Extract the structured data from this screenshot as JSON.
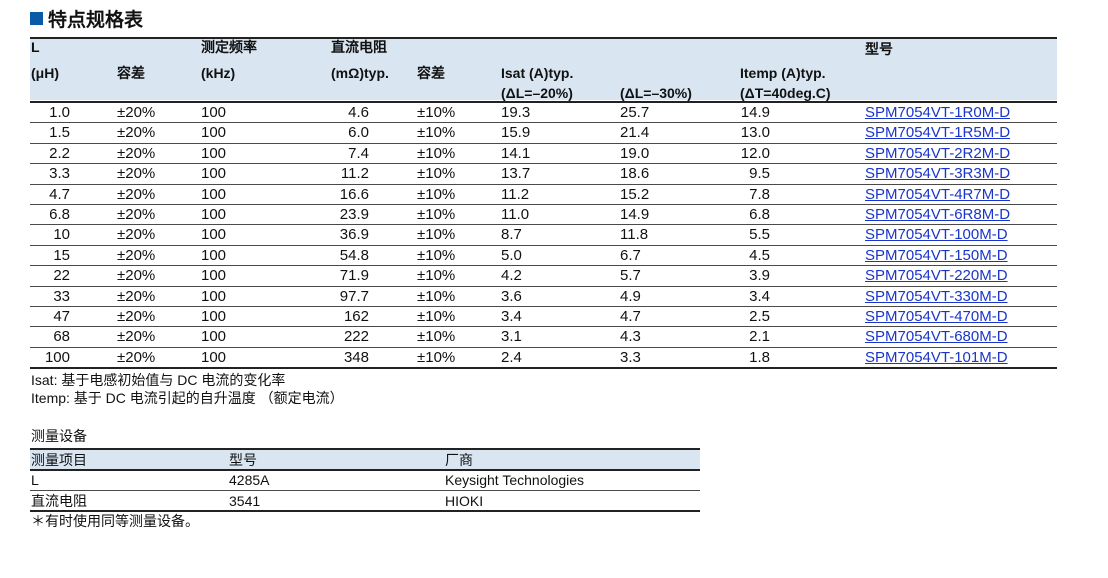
{
  "title": "特点规格表",
  "spec": {
    "headers": {
      "l": "L",
      "uh": "(μH)",
      "tol": "容差",
      "freq1": "测定频率",
      "freq2": "(kHz)",
      "dcr1": "直流电阻",
      "dcr2": "(mΩ)typ.",
      "dcr_tol": "容差",
      "isat": "Isat (A)typ.",
      "isat_a": "(ΔL=–20%)",
      "isat_b": "(ΔL=–30%)",
      "itemp": "Itemp (A)typ.",
      "itemp_sub": "(ΔT=40deg.C)",
      "part": "型号"
    },
    "rows": [
      {
        "l": "1.0",
        "tol": "±20%",
        "freq": "100",
        "dcr": "4.6",
        "dcr_tol": "±10%",
        "isat20": "19.3",
        "isat30": "25.7",
        "itemp": "14.9",
        "part": "SPM7054VT-1R0M-D"
      },
      {
        "l": "1.5",
        "tol": "±20%",
        "freq": "100",
        "dcr": "6.0",
        "dcr_tol": "±10%",
        "isat20": "15.9",
        "isat30": "21.4",
        "itemp": "13.0",
        "part": "SPM7054VT-1R5M-D"
      },
      {
        "l": "2.2",
        "tol": "±20%",
        "freq": "100",
        "dcr": "7.4",
        "dcr_tol": "±10%",
        "isat20": "14.1",
        "isat30": "19.0",
        "itemp": "12.0",
        "part": "SPM7054VT-2R2M-D"
      },
      {
        "l": "3.3",
        "tol": "±20%",
        "freq": "100",
        "dcr": "11.2",
        "dcr_tol": "±10%",
        "isat20": "13.7",
        "isat30": "18.6",
        "itemp": "9.5",
        "part": "SPM7054VT-3R3M-D"
      },
      {
        "l": "4.7",
        "tol": "±20%",
        "freq": "100",
        "dcr": "16.6",
        "dcr_tol": "±10%",
        "isat20": "11.2",
        "isat30": "15.2",
        "itemp": "7.8",
        "part": "SPM7054VT-4R7M-D"
      },
      {
        "l": "6.8",
        "tol": "±20%",
        "freq": "100",
        "dcr": "23.9",
        "dcr_tol": "±10%",
        "isat20": "11.0",
        "isat30": "14.9",
        "itemp": "6.8",
        "part": "SPM7054VT-6R8M-D"
      },
      {
        "l": "10",
        "tol": "±20%",
        "freq": "100",
        "dcr": "36.9",
        "dcr_tol": "±10%",
        "isat20": "8.7",
        "isat30": "11.8",
        "itemp": "5.5",
        "part": "SPM7054VT-100M-D"
      },
      {
        "l": "15",
        "tol": "±20%",
        "freq": "100",
        "dcr": "54.8",
        "dcr_tol": "±10%",
        "isat20": "5.0",
        "isat30": "6.7",
        "itemp": "4.5",
        "part": "SPM7054VT-150M-D"
      },
      {
        "l": "22",
        "tol": "±20%",
        "freq": "100",
        "dcr": "71.9",
        "dcr_tol": "±10%",
        "isat20": "4.2",
        "isat30": "5.7",
        "itemp": "3.9",
        "part": "SPM7054VT-220M-D"
      },
      {
        "l": "33",
        "tol": "±20%",
        "freq": "100",
        "dcr": "97.7",
        "dcr_tol": "±10%",
        "isat20": "3.6",
        "isat30": "4.9",
        "itemp": "3.4",
        "part": "SPM7054VT-330M-D"
      },
      {
        "l": "47",
        "tol": "±20%",
        "freq": "100",
        "dcr": "162",
        "dcr_tol": "±10%",
        "isat20": "3.4",
        "isat30": "4.7",
        "itemp": "2.5",
        "part": "SPM7054VT-470M-D"
      },
      {
        "l": "68",
        "tol": "±20%",
        "freq": "100",
        "dcr": "222",
        "dcr_tol": "±10%",
        "isat20": "3.1",
        "isat30": "4.3",
        "itemp": "2.1",
        "part": "SPM7054VT-680M-D"
      },
      {
        "l": "100",
        "tol": "±20%",
        "freq": "100",
        "dcr": "348",
        "dcr_tol": "±10%",
        "isat20": "2.4",
        "isat30": "3.3",
        "itemp": "1.8",
        "part": "SPM7054VT-101M-D"
      }
    ]
  },
  "notes": {
    "isat": "Isat: 基于电感初始值与 DC 电流的变化率",
    "itemp": "Itemp: 基于 DC 电流引起的自升温度 （额定电流）"
  },
  "equipment": {
    "title": "测量设备",
    "headers": {
      "item": "测量项目",
      "model": "型号",
      "maker": "厂商"
    },
    "rows": [
      {
        "item": "L",
        "model": "4285A",
        "maker": "Keysight Technologies"
      },
      {
        "item": "直流电阻",
        "model": "3541",
        "maker": "HIOKI"
      }
    ],
    "footnote": "＊有时使用同等测量设备。"
  },
  "colors": {
    "accent": "#0a5aa8",
    "header_band": "#d9e6f2",
    "link": "#1a35c8"
  }
}
